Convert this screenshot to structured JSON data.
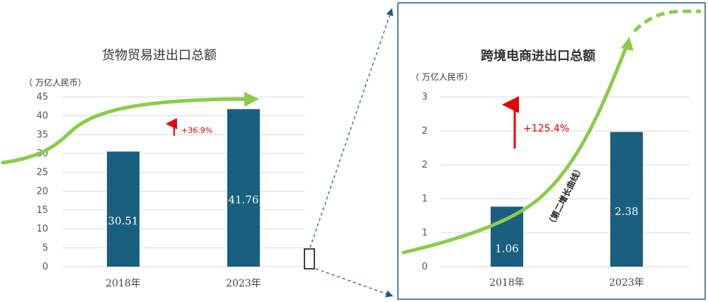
{
  "chart_data": [
    {
      "type": "bar",
      "title": "货物贸易进出口总额",
      "unit": "（ 万亿人民币）",
      "categories": [
        "2018年",
        "2023年"
      ],
      "values": [
        30.51,
        41.76
      ],
      "data_labels": [
        "30.51",
        "41.76"
      ],
      "yticks": [
        "0",
        "5",
        "10",
        "15",
        "20",
        "25",
        "30",
        "35",
        "40",
        "45"
      ],
      "ylim": [
        0,
        45
      ],
      "grid": true,
      "annotation": "+36.9%",
      "bar_color": "#195f80",
      "accent": "#e60000",
      "curve_color": "#8ccb4b"
    },
    {
      "type": "bar",
      "title": "跨境电商进出口总额",
      "unit": "（ 万亿人民币）",
      "categories": [
        "2018年",
        "2023年"
      ],
      "values": [
        1.06,
        2.38
      ],
      "data_labels": [
        "1.06",
        "2.38"
      ],
      "yticks": [
        "0",
        "1",
        "1",
        "2",
        "2",
        "3"
      ],
      "ylim": [
        0,
        3
      ],
      "grid": true,
      "annotation": "+125.4%",
      "curve_label": "（第二增长曲线）",
      "bar_color": "#195f80",
      "accent": "#e60000",
      "curve_color": "#8ccb4b"
    }
  ]
}
